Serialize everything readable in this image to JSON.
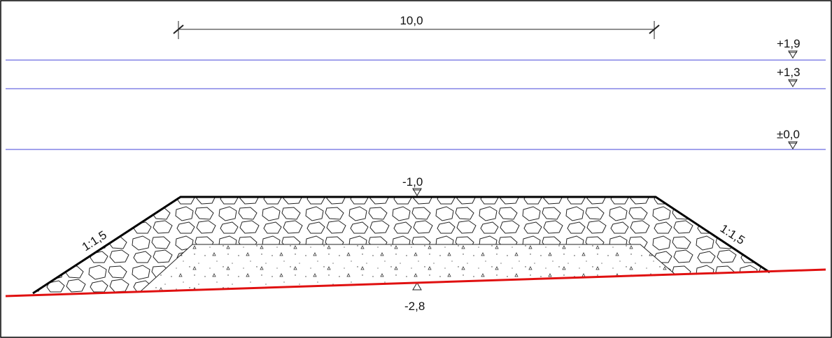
{
  "dimension": {
    "label": "10,0"
  },
  "levels": {
    "top": "+1,9",
    "upper": "+1,3",
    "zero": "±0,0",
    "crest": "-1,0",
    "base": "-2,8"
  },
  "slopes": {
    "left": "1:1,5",
    "right": "1:1,5"
  }
}
